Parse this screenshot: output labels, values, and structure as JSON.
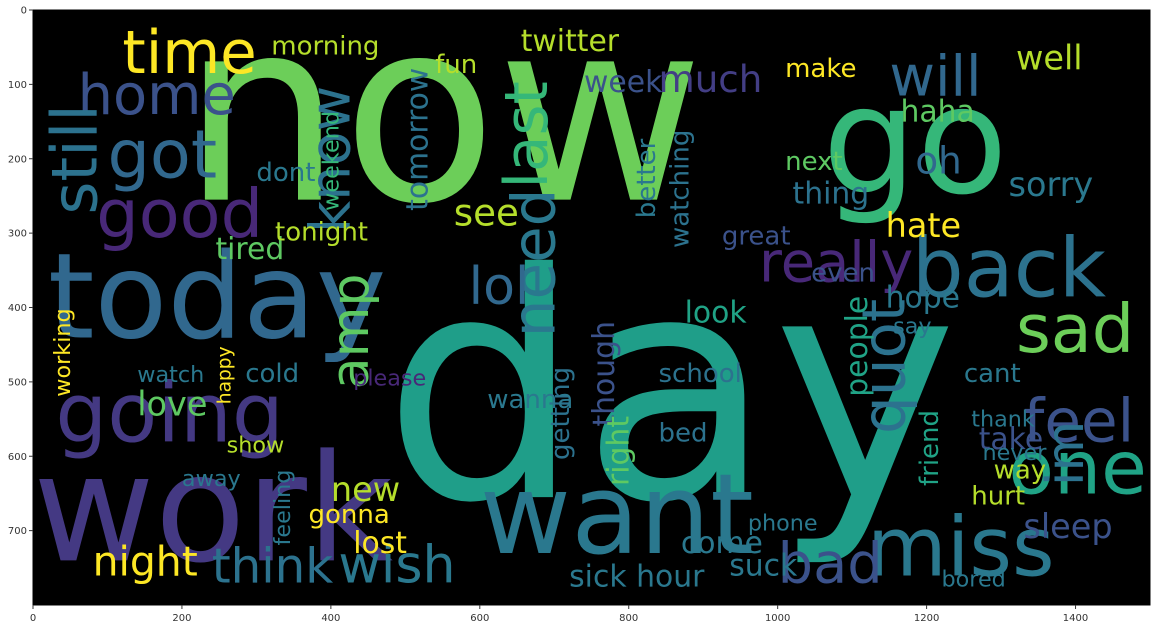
{
  "chart_data": {
    "type": "wordcloud",
    "xlim": [
      0,
      1500
    ],
    "ylim": [
      800,
      0
    ],
    "x_ticks": [
      "0",
      "200",
      "400",
      "600",
      "800",
      "1000",
      "1200",
      "1400"
    ],
    "y_ticks": [
      "0",
      "100",
      "200",
      "300",
      "400",
      "500",
      "600",
      "700"
    ],
    "grid": false,
    "background": "#000000",
    "words": [
      {
        "text": "now",
        "x": 200,
        "y": 255,
        "size": 340,
        "color": "#6cce59",
        "rot": 0
      },
      {
        "text": "day",
        "x": 470,
        "y": 655,
        "size": 420,
        "color": "#1f9e89",
        "rot": 0
      },
      {
        "text": "work",
        "x": 0,
        "y": 740,
        "size": 200,
        "color": "#443983",
        "rot": 0
      },
      {
        "text": "today",
        "x": 20,
        "y": 440,
        "size": 160,
        "color": "#31688e",
        "rot": 0
      },
      {
        "text": "go",
        "x": 1060,
        "y": 245,
        "size": 200,
        "color": "#35b779",
        "rot": 0
      },
      {
        "text": "want",
        "x": 600,
        "y": 730,
        "size": 150,
        "color": "#2a788e",
        "rot": 0
      },
      {
        "text": "going",
        "x": 30,
        "y": 580,
        "size": 110,
        "color": "#443983",
        "rot": 0
      },
      {
        "text": "good",
        "x": 85,
        "y": 305,
        "size": 90,
        "color": "#482878",
        "rot": 0
      },
      {
        "text": "got",
        "x": 100,
        "y": 225,
        "size": 90,
        "color": "#31688e",
        "rot": 0
      },
      {
        "text": "time",
        "x": 120,
        "y": 85,
        "size": 80,
        "color": "#fde725",
        "rot": 0
      },
      {
        "text": "home",
        "x": 60,
        "y": 140,
        "size": 75,
        "color": "#3b528b",
        "rot": 0
      },
      {
        "text": "still",
        "x": 85,
        "y": 275,
        "size": 85,
        "color": "#2c728e",
        "rot": -90
      },
      {
        "text": "know",
        "x": 425,
        "y": 300,
        "size": 75,
        "color": "#2c728e",
        "rot": -90
      },
      {
        "text": "will",
        "x": 1150,
        "y": 115,
        "size": 75,
        "color": "#31688e",
        "rot": 0
      },
      {
        "text": "really",
        "x": 975,
        "y": 365,
        "size": 75,
        "color": "#482878",
        "rot": 0
      },
      {
        "text": "back",
        "x": 1180,
        "y": 385,
        "size": 110,
        "color": "#2c728e",
        "rot": 0
      },
      {
        "text": "sad",
        "x": 1320,
        "y": 460,
        "size": 90,
        "color": "#6cce59",
        "rot": 0
      },
      {
        "text": "miss",
        "x": 1120,
        "y": 760,
        "size": 110,
        "color": "#2a788e",
        "rot": 0
      },
      {
        "text": "one",
        "x": 1310,
        "y": 650,
        "size": 100,
        "color": "#20a386",
        "rot": 0
      },
      {
        "text": "feel",
        "x": 1330,
        "y": 580,
        "size": 80,
        "color": "#3b528b",
        "rot": 0
      },
      {
        "text": "im",
        "x": 1410,
        "y": 640,
        "size": 70,
        "color": "#2c728e",
        "rot": -90
      },
      {
        "text": "bad",
        "x": 1000,
        "y": 770,
        "size": 75,
        "color": "#3b528b",
        "rot": 0
      },
      {
        "text": "wish",
        "x": 410,
        "y": 770,
        "size": 70,
        "color": "#2a788e",
        "rot": 0
      },
      {
        "text": "think",
        "x": 240,
        "y": 770,
        "size": 65,
        "color": "#2c728e",
        "rot": 0
      },
      {
        "text": "night",
        "x": 80,
        "y": 760,
        "size": 55,
        "color": "#fde725",
        "rot": 0
      },
      {
        "text": "amp",
        "x": 450,
        "y": 510,
        "size": 70,
        "color": "#5ec962",
        "rot": -90
      },
      {
        "text": "need",
        "x": 700,
        "y": 440,
        "size": 80,
        "color": "#2a788e",
        "rot": -90
      },
      {
        "text": "lol",
        "x": 585,
        "y": 395,
        "size": 70,
        "color": "#31688e",
        "rot": 0
      },
      {
        "text": "last",
        "x": 690,
        "y": 240,
        "size": 80,
        "color": "#35b779",
        "rot": -90
      },
      {
        "text": "quot",
        "x": 1170,
        "y": 570,
        "size": 80,
        "color": "#2c728e",
        "rot": -90
      },
      {
        "text": "sleep",
        "x": 1330,
        "y": 710,
        "size": 45,
        "color": "#3b528b",
        "rot": 0
      },
      {
        "text": "hate",
        "x": 1145,
        "y": 305,
        "size": 45,
        "color": "#fde725",
        "rot": 0
      },
      {
        "text": "sorry",
        "x": 1310,
        "y": 250,
        "size": 45,
        "color": "#2a788e",
        "rot": 0
      },
      {
        "text": "much",
        "x": 840,
        "y": 110,
        "size": 50,
        "color": "#433e85",
        "rot": 0
      },
      {
        "text": "haha",
        "x": 1165,
        "y": 150,
        "size": 40,
        "color": "#5ec962",
        "rot": 0
      },
      {
        "text": "well",
        "x": 1320,
        "y": 80,
        "size": 45,
        "color": "#b5de2b",
        "rot": 0
      },
      {
        "text": "oh",
        "x": 1185,
        "y": 220,
        "size": 50,
        "color": "#31688e",
        "rot": 0
      },
      {
        "text": "see",
        "x": 565,
        "y": 290,
        "size": 50,
        "color": "#b5de2b",
        "rot": 0
      },
      {
        "text": "love",
        "x": 140,
        "y": 545,
        "size": 45,
        "color": "#5ec962",
        "rot": 0
      },
      {
        "text": "new",
        "x": 400,
        "y": 660,
        "size": 45,
        "color": "#b5de2b",
        "rot": 0
      },
      {
        "text": "lost",
        "x": 430,
        "y": 730,
        "size": 40,
        "color": "#fde725",
        "rot": 0
      },
      {
        "text": "gonna",
        "x": 370,
        "y": 690,
        "size": 35,
        "color": "#fde725",
        "rot": 0
      },
      {
        "text": "school",
        "x": 840,
        "y": 500,
        "size": 35,
        "color": "#2c728e",
        "rot": 0
      },
      {
        "text": "hope",
        "x": 1145,
        "y": 400,
        "size": 40,
        "color": "#2a788e",
        "rot": 0
      },
      {
        "text": "tired",
        "x": 245,
        "y": 335,
        "size": 40,
        "color": "#5ec962",
        "rot": 0
      },
      {
        "text": "tonight",
        "x": 325,
        "y": 310,
        "size": 35,
        "color": "#b5de2b",
        "rot": 0
      },
      {
        "text": "twitter",
        "x": 655,
        "y": 55,
        "size": 40,
        "color": "#b5de2b",
        "rot": 0
      },
      {
        "text": "morning",
        "x": 320,
        "y": 60,
        "size": 35,
        "color": "#b5de2b",
        "rot": 0
      },
      {
        "text": "week",
        "x": 740,
        "y": 110,
        "size": 40,
        "color": "#3b528b",
        "rot": 0
      },
      {
        "text": "make",
        "x": 1010,
        "y": 90,
        "size": 35,
        "color": "#fde725",
        "rot": 0
      },
      {
        "text": "fun",
        "x": 540,
        "y": 85,
        "size": 35,
        "color": "#b5de2b",
        "rot": 0
      },
      {
        "text": "tomorrow",
        "x": 530,
        "y": 270,
        "size": 40,
        "color": "#2c728e",
        "rot": -90
      },
      {
        "text": "weekend",
        "x": 410,
        "y": 270,
        "size": 30,
        "color": "#35b779",
        "rot": -90
      },
      {
        "text": "dont",
        "x": 300,
        "y": 230,
        "size": 35,
        "color": "#2a788e",
        "rot": 0
      },
      {
        "text": "thing",
        "x": 1020,
        "y": 260,
        "size": 40,
        "color": "#2c728e",
        "rot": 0
      },
      {
        "text": "next",
        "x": 1010,
        "y": 215,
        "size": 35,
        "color": "#5ec962",
        "rot": 0
      },
      {
        "text": "better",
        "x": 835,
        "y": 280,
        "size": 35,
        "color": "#2a788e",
        "rot": -90
      },
      {
        "text": "watching",
        "x": 880,
        "y": 320,
        "size": 35,
        "color": "#2c728e",
        "rot": -90
      },
      {
        "text": "look",
        "x": 875,
        "y": 420,
        "size": 40,
        "color": "#20a386",
        "rot": 0
      },
      {
        "text": "great",
        "x": 925,
        "y": 315,
        "size": 35,
        "color": "#3b528b",
        "rot": 0
      },
      {
        "text": "even",
        "x": 1045,
        "y": 365,
        "size": 35,
        "color": "#3b528b",
        "rot": 0
      },
      {
        "text": "people",
        "x": 1120,
        "y": 520,
        "size": 40,
        "color": "#20a386",
        "rot": -90
      },
      {
        "text": "friend",
        "x": 1215,
        "y": 640,
        "size": 35,
        "color": "#20a386",
        "rot": -90
      },
      {
        "text": "though",
        "x": 780,
        "y": 560,
        "size": 40,
        "color": "#3b528b",
        "rot": -90
      },
      {
        "text": "right",
        "x": 800,
        "y": 640,
        "size": 40,
        "color": "#5ec962",
        "rot": -90
      },
      {
        "text": "getting",
        "x": 720,
        "y": 605,
        "size": 35,
        "color": "#2c728e",
        "rot": -90
      },
      {
        "text": "wanna",
        "x": 610,
        "y": 535,
        "size": 35,
        "color": "#2a788e",
        "rot": 0
      },
      {
        "text": "bed",
        "x": 840,
        "y": 580,
        "size": 35,
        "color": "#2c728e",
        "rot": 0
      },
      {
        "text": "take",
        "x": 1270,
        "y": 590,
        "size": 40,
        "color": "#3b528b",
        "rot": 0
      },
      {
        "text": "hurt",
        "x": 1260,
        "y": 665,
        "size": 35,
        "color": "#b5de2b",
        "rot": 0
      },
      {
        "text": "way",
        "x": 1290,
        "y": 630,
        "size": 35,
        "color": "#b5de2b",
        "rot": 0
      },
      {
        "text": "never",
        "x": 1275,
        "y": 605,
        "size": 30,
        "color": "#2a788e",
        "rot": 0
      },
      {
        "text": "cant",
        "x": 1250,
        "y": 500,
        "size": 35,
        "color": "#2a788e",
        "rot": 0
      },
      {
        "text": "say",
        "x": 1155,
        "y": 435,
        "size": 30,
        "color": "#2a788e",
        "rot": 0
      },
      {
        "text": "come",
        "x": 870,
        "y": 730,
        "size": 40,
        "color": "#2a788e",
        "rot": 0
      },
      {
        "text": "suck",
        "x": 935,
        "y": 760,
        "size": 40,
        "color": "#2a788e",
        "rot": 0
      },
      {
        "text": "hour",
        "x": 810,
        "y": 775,
        "size": 40,
        "color": "#2a788e",
        "rot": 0
      },
      {
        "text": "sick",
        "x": 720,
        "y": 775,
        "size": 40,
        "color": "#2a788e",
        "rot": 0
      },
      {
        "text": "phone",
        "x": 960,
        "y": 700,
        "size": 30,
        "color": "#2a788e",
        "rot": 0
      },
      {
        "text": "bored",
        "x": 1220,
        "y": 775,
        "size": 30,
        "color": "#2a788e",
        "rot": 0
      },
      {
        "text": "working",
        "x": 50,
        "y": 520,
        "size": 30,
        "color": "#fde725",
        "rot": -90
      },
      {
        "text": "watch",
        "x": 140,
        "y": 500,
        "size": 30,
        "color": "#2a788e",
        "rot": 0
      },
      {
        "text": "feeling",
        "x": 345,
        "y": 720,
        "size": 30,
        "color": "#2a788e",
        "rot": -90
      },
      {
        "text": "happy",
        "x": 265,
        "y": 530,
        "size": 25,
        "color": "#fde725",
        "rot": -90
      },
      {
        "text": "show",
        "x": 260,
        "y": 595,
        "size": 30,
        "color": "#b5de2b",
        "rot": 0
      },
      {
        "text": "away",
        "x": 200,
        "y": 640,
        "size": 30,
        "color": "#2a788e",
        "rot": 0
      },
      {
        "text": "cold",
        "x": 285,
        "y": 500,
        "size": 35,
        "color": "#2a788e",
        "rot": 0
      },
      {
        "text": "please",
        "x": 430,
        "y": 505,
        "size": 30,
        "color": "#482878",
        "rot": 0
      },
      {
        "text": "thank",
        "x": 1260,
        "y": 560,
        "size": 30,
        "color": "#2a788e",
        "rot": 0
      }
    ]
  }
}
